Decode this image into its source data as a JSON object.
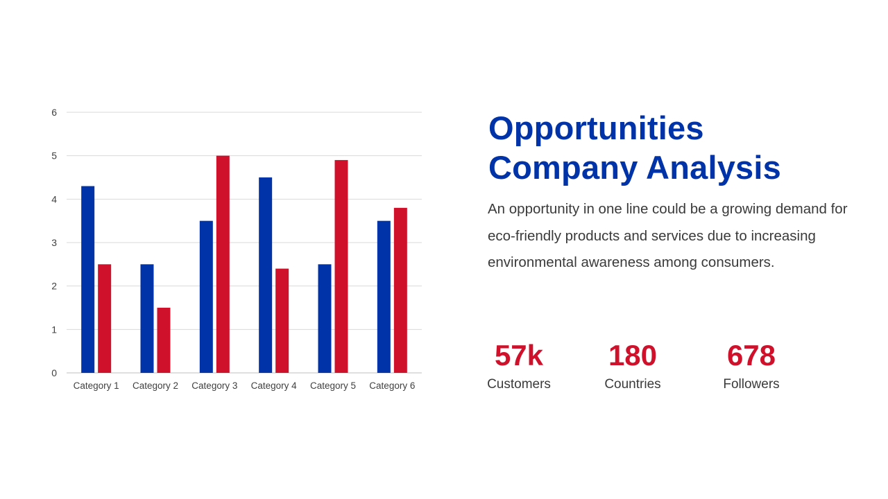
{
  "slide": {
    "title_line1": "Opportunities",
    "title_line2": "Company Analysis",
    "description": "An opportunity in one line could be a growing demand for eco-friendly products and services due to increasing environmental awareness among consumers."
  },
  "stats": [
    {
      "value": "57k",
      "label": "Customers"
    },
    {
      "value": "180",
      "label": "Countries"
    },
    {
      "value": "678",
      "label": "Followers"
    }
  ],
  "colors": {
    "accent_blue": "#0033a8",
    "accent_red": "#d0112b",
    "grid": "#d9d9d9",
    "text": "#404040"
  },
  "chart_data": {
    "type": "bar",
    "categories": [
      "Category 1",
      "Category 2",
      "Category 3",
      "Category 4",
      "Category 5",
      "Category 6"
    ],
    "series": [
      {
        "values": [
          4.3,
          2.5,
          3.5,
          4.5,
          2.5,
          3.5
        ],
        "color": "#0033a8"
      },
      {
        "values": [
          2.5,
          1.5,
          5.0,
          2.4,
          4.9,
          3.8
        ],
        "color": "#d0112b"
      }
    ],
    "yticks": [
      "0",
      "1",
      "2",
      "3",
      "4",
      "5",
      "6"
    ],
    "ylim": [
      0,
      6
    ],
    "title": "",
    "xlabel": "",
    "ylabel": "",
    "grid": true,
    "legend": "none"
  }
}
